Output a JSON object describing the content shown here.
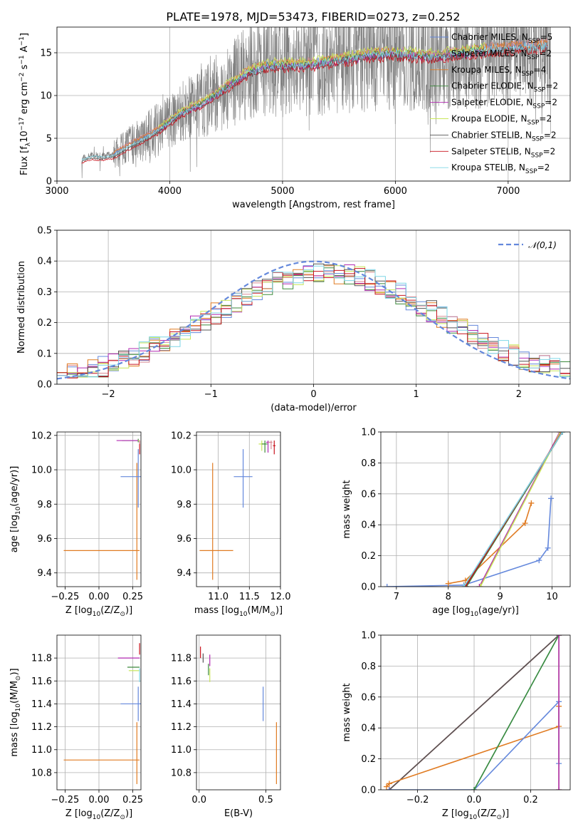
{
  "figure": {
    "title": "PLATE=1978, MJD=53473, FIBERID=0273, z=0.252"
  },
  "colors": {
    "Chabrier MILES": "#6488dc",
    "Salpeter MILES": "#d98a94",
    "Kroupa MILES": "#e07b22",
    "Chabrier ELODIE": "#3c8a3c",
    "Salpeter ELODIE": "#b22ab2",
    "Kroupa ELODIE": "#c8e65a",
    "Chabrier STELIB": "#555555",
    "Salpeter STELIB": "#c8141e",
    "Kroupa STELIB": "#7ed6e6",
    "data": "#808080"
  },
  "chart_data": [
    {
      "id": "spectrum",
      "type": "line",
      "title": "PLATE=1978, MJD=53473, FIBERID=0273, z=0.252",
      "xlabel": "wavelength [Angstrom, rest frame]",
      "ylabel": "Flux [f$_\\lambda$10$^{-17}$ erg cm$^{-2}$ s$^{-1}$ A$^{-1}$]",
      "xlim": [
        3000,
        7550
      ],
      "ylim": [
        0,
        18
      ],
      "xticks": [
        3000,
        4000,
        5000,
        6000,
        7000
      ],
      "yticks": [
        0,
        5,
        10,
        15
      ],
      "grid": true,
      "legend_position": "top-right",
      "continuum_points": [
        [
          3220,
          2.6
        ],
        [
          3300,
          3.0
        ],
        [
          3400,
          2.9
        ],
        [
          3500,
          3.1
        ],
        [
          3700,
          4.6
        ],
        [
          3850,
          5.6
        ],
        [
          3950,
          6.5
        ],
        [
          4100,
          8.0
        ],
        [
          4300,
          9.2
        ],
        [
          4500,
          11.0
        ],
        [
          4700,
          12.8
        ],
        [
          4900,
          13.6
        ],
        [
          5200,
          13.6
        ],
        [
          5500,
          14.2
        ],
        [
          5800,
          14.8
        ],
        [
          6000,
          15.0
        ],
        [
          6300,
          14.6
        ],
        [
          6600,
          15.0
        ],
        [
          6900,
          15.5
        ],
        [
          7200,
          15.7
        ],
        [
          7350,
          15.9
        ]
      ],
      "data_range": [
        3220,
        7380
      ],
      "series": [
        {
          "name": "Chabrier MILES",
          "n_ssp": "5",
          "range": [
            3500,
            7350
          ],
          "offset": 0.1
        },
        {
          "name": "Salpeter MILES",
          "n_ssp": "2",
          "range": [
            3500,
            7350
          ],
          "offset": 0.3
        },
        {
          "name": "Kroupa MILES",
          "n_ssp": "4",
          "range": [
            3500,
            7350
          ],
          "offset": 0.2
        },
        {
          "name": "Chabrier ELODIE",
          "n_ssp": "2",
          "range": [
            3900,
            6800
          ],
          "offset": 0.0
        },
        {
          "name": "Salpeter ELODIE",
          "n_ssp": "2",
          "range": [
            3900,
            6800
          ],
          "offset": -0.2
        },
        {
          "name": "Kroupa ELODIE",
          "n_ssp": "2",
          "range": [
            3900,
            6800
          ],
          "offset": 0.4
        },
        {
          "name": "Chabrier STELIB",
          "n_ssp": "2",
          "range": [
            3220,
            7350
          ],
          "offset": -0.3
        },
        {
          "name": "Salpeter STELIB",
          "n_ssp": "2",
          "range": [
            3220,
            7350
          ],
          "offset": -0.5
        },
        {
          "name": "Kroupa STELIB",
          "n_ssp": "2",
          "range": [
            3220,
            7350
          ],
          "offset": -0.1
        }
      ]
    },
    {
      "id": "residuals",
      "type": "histogram",
      "xlabel": "(data-model)/error",
      "ylabel": "Normed distribution",
      "xlim": [
        -2.5,
        2.5
      ],
      "ylim": [
        0,
        0.5
      ],
      "xticks": [
        -2,
        -1,
        0,
        1,
        2
      ],
      "yticks": [
        0.0,
        0.1,
        0.2,
        0.3,
        0.4,
        0.5
      ],
      "grid": true,
      "legend_position": "top-right",
      "reference_curve": {
        "name": "$\\mathcal{N}(0,1)$",
        "mean": 0,
        "sigma": 1
      },
      "bin_width": 0.1,
      "series_names": [
        "Chabrier MILES",
        "Salpeter MILES",
        "Kroupa MILES",
        "Chabrier ELODIE",
        "Salpeter ELODIE",
        "Kroupa ELODIE",
        "Chabrier STELIB",
        "Salpeter STELIB",
        "Kroupa STELIB"
      ]
    },
    {
      "id": "age_vs_Z",
      "type": "errorbar",
      "xlabel": "Z [log$_{10}$(Z/Z$_\\odot$)]",
      "ylabel": "age  [log$_{10}$(age/yr)]",
      "xlim": [
        -0.31,
        0.31
      ],
      "ylim": [
        9.32,
        10.22
      ],
      "xticks": [
        -0.25,
        0.0,
        0.25
      ],
      "xticklabels": [
        "−0.25",
        "0.00",
        "0.25"
      ],
      "yticks": [
        9.4,
        9.6,
        9.8,
        10.0,
        10.2
      ],
      "grid": true,
      "points": [
        {
          "series": "Kroupa MILES",
          "x": 0.28,
          "y": 9.53,
          "xerr": [
            0.54,
            0.02
          ],
          "yerr": [
            0.17,
            0.51
          ]
        },
        {
          "series": "Chabrier MILES",
          "x": 0.29,
          "y": 9.96,
          "xerr": [
            0.13,
            0.02
          ],
          "yerr": [
            0.18,
            0.16
          ]
        },
        {
          "series": "Chabrier ELODIE",
          "x": 0.29,
          "y": 10.17,
          "xerr": [
            0.12,
            0.01
          ],
          "yerr": [
            0.01,
            0.01
          ]
        },
        {
          "series": "Salpeter ELODIE",
          "x": 0.2,
          "y": 10.17,
          "xerr": [
            0.07,
            0.09
          ],
          "yerr": [
            0.0,
            0.0
          ]
        },
        {
          "series": "Kroupa ELODIE",
          "x": 0.3,
          "y": 10.17,
          "xerr": [
            0.01,
            0.0
          ],
          "yerr": [
            0.0,
            0.0
          ]
        },
        {
          "series": "Salpeter STELIB",
          "x": 0.3,
          "y": 10.12,
          "xerr": [
            0.0,
            0.0
          ],
          "yerr": [
            0.03,
            0.05
          ]
        },
        {
          "series": "Salpeter MILES",
          "x": 0.3,
          "y": 10.16,
          "xerr": [
            0.0,
            0.0
          ],
          "yerr": [
            0.01,
            0.01
          ]
        }
      ]
    },
    {
      "id": "age_vs_mass",
      "type": "errorbar",
      "xlabel": "mass [log$_{10}$(M/M$_\\odot$)]",
      "ylabel": "",
      "xlim": [
        10.65,
        12.0
      ],
      "ylim": [
        9.32,
        10.22
      ],
      "xticks": [
        11.0,
        11.5,
        12.0
      ],
      "xticklabels": [
        "11.0",
        "11.5",
        "12.0"
      ],
      "yticks": [
        9.4,
        9.6,
        9.8,
        10.0,
        10.2
      ],
      "grid": true,
      "points": [
        {
          "series": "Kroupa MILES",
          "x": 10.91,
          "y": 9.53,
          "xerr": [
            0.21,
            0.33
          ],
          "yerr": [
            0.17,
            0.51
          ]
        },
        {
          "series": "Chabrier MILES",
          "x": 11.4,
          "y": 9.96,
          "xerr": [
            0.15,
            0.15
          ],
          "yerr": [
            0.18,
            0.16
          ]
        },
        {
          "series": "Kroupa ELODIE",
          "x": 11.7,
          "y": 10.15,
          "xerr": [
            0.05,
            0.05
          ],
          "yerr": [
            0.04,
            0.02
          ]
        },
        {
          "series": "Chabrier ELODIE",
          "x": 11.75,
          "y": 10.15,
          "xerr": [
            0.05,
            0.04
          ],
          "yerr": [
            0.05,
            0.02
          ]
        },
        {
          "series": "Salpeter ELODIE",
          "x": 11.8,
          "y": 10.16,
          "xerr": [
            0.03,
            0.03
          ],
          "yerr": [
            0.06,
            0.01
          ]
        },
        {
          "series": "Salpeter STELIB",
          "x": 11.9,
          "y": 10.14,
          "xerr": [
            0.02,
            0.02
          ],
          "yerr": [
            0.05,
            0.03
          ]
        },
        {
          "series": "Salpeter MILES",
          "x": 11.85,
          "y": 10.16,
          "xerr": [
            0.05,
            0.02
          ],
          "yerr": [
            0.04,
            0.01
          ]
        }
      ]
    },
    {
      "id": "massweight_vs_age",
      "type": "line",
      "xlabel": "age  [log$_{10}$(age/yr)]",
      "ylabel": "mass weight",
      "xlim": [
        6.7,
        10.35
      ],
      "ylim": [
        0,
        1
      ],
      "xticks": [
        7,
        8,
        9,
        10
      ],
      "yticks": [
        0.0,
        0.2,
        0.4,
        0.6,
        0.8,
        1.0
      ],
      "grid": true,
      "series": [
        {
          "name": "Chabrier MILES",
          "x": [
            6.82,
            8.3,
            9.75,
            9.92,
            9.98
          ],
          "y": [
            0.0,
            0.01,
            0.17,
            0.25,
            0.57
          ]
        },
        {
          "name": "Kroupa MILES",
          "x": [
            8.0,
            8.33,
            9.48,
            9.6
          ],
          "y": [
            0.02,
            0.04,
            0.41,
            0.54
          ]
        },
        {
          "name": "Salpeter MILES",
          "x": [
            8.6,
            10.15
          ],
          "y": [
            0.0,
            1.0
          ]
        },
        {
          "name": "Chabrier ELODIE",
          "x": [
            8.35,
            10.2
          ],
          "y": [
            0.0,
            1.0
          ]
        },
        {
          "name": "Salpeter ELODIE",
          "x": [
            8.6,
            10.15
          ],
          "y": [
            0.0,
            1.0
          ]
        },
        {
          "name": "Kroupa ELODIE",
          "x": [
            8.62,
            10.16
          ],
          "y": [
            0.0,
            1.0
          ]
        },
        {
          "name": "Chabrier STELIB",
          "x": [
            8.32,
            10.2
          ],
          "y": [
            0.0,
            1.0
          ]
        },
        {
          "name": "Salpeter STELIB",
          "x": [
            8.33,
            10.19
          ],
          "y": [
            0.0,
            1.0
          ]
        },
        {
          "name": "Kroupa STELIB",
          "x": [
            8.3,
            10.2
          ],
          "y": [
            0.0,
            1.0
          ]
        }
      ]
    },
    {
      "id": "mass_vs_Z",
      "type": "errorbar",
      "xlabel": "Z [log$_{10}$(Z/Z$_\\odot$)]",
      "ylabel": "mass [log$_{10}$(M/M$_\\odot$)]",
      "xlim": [
        -0.31,
        0.31
      ],
      "ylim": [
        10.65,
        12.0
      ],
      "xticks": [
        -0.25,
        0.0,
        0.25
      ],
      "xticklabels": [
        "−0.25",
        "0.00",
        "0.25"
      ],
      "yticks": [
        10.8,
        11.0,
        11.2,
        11.4,
        11.6,
        11.8
      ],
      "grid": true,
      "points": [
        {
          "series": "Kroupa MILES",
          "x": 0.28,
          "y": 10.91,
          "xerr": [
            0.54,
            0.02
          ],
          "yerr": [
            0.21,
            0.33
          ]
        },
        {
          "series": "Chabrier MILES",
          "x": 0.29,
          "y": 11.4,
          "xerr": [
            0.13,
            0.02
          ],
          "yerr": [
            0.15,
            0.15
          ]
        },
        {
          "series": "Chabrier ELODIE",
          "x": 0.26,
          "y": 11.72,
          "xerr": [
            0.05,
            0.04
          ],
          "yerr": [
            0.0,
            0.0
          ]
        },
        {
          "series": "Kroupa ELODIE",
          "x": 0.26,
          "y": 11.69,
          "xerr": [
            0.04,
            0.04
          ],
          "yerr": [
            0.0,
            0.0
          ]
        },
        {
          "series": "Salpeter ELODIE",
          "x": 0.22,
          "y": 11.8,
          "xerr": [
            0.08,
            0.08
          ],
          "yerr": [
            0.0,
            0.0
          ]
        },
        {
          "series": "Salpeter STELIB",
          "x": 0.3,
          "y": 11.88,
          "xerr": [
            0.0,
            0.0
          ],
          "yerr": [
            0.05,
            0.05
          ]
        },
        {
          "series": "Kroupa STELIB",
          "x": 0.3,
          "y": 11.65,
          "xerr": [
            0.0,
            0.0
          ],
          "yerr": [
            0.06,
            0.06
          ]
        }
      ]
    },
    {
      "id": "mass_vs_ebv",
      "type": "errorbar",
      "xlabel": "E(B-V)",
      "ylabel": "",
      "xlim": [
        -0.02,
        0.61
      ],
      "ylim": [
        10.65,
        12.0
      ],
      "xticks": [
        0.0,
        0.5
      ],
      "xticklabels": [
        "0.0",
        "0.5"
      ],
      "yticks": [
        10.8,
        11.0,
        11.2,
        11.4,
        11.6,
        11.8
      ],
      "grid": true,
      "points": [
        {
          "series": "Kroupa MILES",
          "x": 0.58,
          "y": 10.91,
          "xerr": [
            0.0,
            0.0
          ],
          "yerr": [
            0.21,
            0.33
          ]
        },
        {
          "series": "Chabrier MILES",
          "x": 0.48,
          "y": 11.4,
          "xerr": [
            0.0,
            0.0
          ],
          "yerr": [
            0.15,
            0.15
          ]
        },
        {
          "series": "Salpeter STELIB",
          "x": 0.01,
          "y": 11.85,
          "xerr": [
            0.0,
            0.0
          ],
          "yerr": [
            0.05,
            0.05
          ]
        },
        {
          "series": "Chabrier STELIB",
          "x": 0.03,
          "y": 11.8,
          "xerr": [
            0.0,
            0.0
          ],
          "yerr": [
            0.04,
            0.04
          ]
        },
        {
          "series": "Salpeter ELODIE",
          "x": 0.08,
          "y": 11.78,
          "xerr": [
            0.0,
            0.0
          ],
          "yerr": [
            0.05,
            0.05
          ]
        },
        {
          "series": "Kroupa ELODIE",
          "x": 0.08,
          "y": 11.65,
          "xerr": [
            0.0,
            0.0
          ],
          "yerr": [
            0.06,
            0.06
          ]
        },
        {
          "series": "Chabrier ELODIE",
          "x": 0.07,
          "y": 11.7,
          "xerr": [
            0.0,
            0.0
          ],
          "yerr": [
            0.05,
            0.05
          ]
        }
      ]
    },
    {
      "id": "massweight_vs_Z",
      "type": "line",
      "xlabel": "Z [log$_{10}$(Z/Z$_\\odot$)]",
      "ylabel": "mass weight",
      "xlim": [
        -0.33,
        0.34
      ],
      "ylim": [
        0,
        1
      ],
      "xticks": [
        -0.2,
        0.0,
        0.2
      ],
      "xticklabels": [
        "−0.2",
        "0.0",
        "0.2"
      ],
      "yticks": [
        0.0,
        0.2,
        0.4,
        0.6,
        0.8,
        1.0
      ],
      "grid": true,
      "series": [
        {
          "name": "Salpeter STELIB",
          "x": [
            -0.3,
            0.3
          ],
          "y": [
            0.0,
            1.0
          ]
        },
        {
          "name": "Chabrier STELIB",
          "x": [
            -0.3,
            0.3
          ],
          "y": [
            0.0,
            1.0
          ]
        },
        {
          "name": "Kroupa MILES",
          "x": [
            -0.31,
            -0.3,
            0.3,
            0.3
          ],
          "y": [
            0.02,
            0.04,
            0.41,
            0.54
          ]
        },
        {
          "name": "Chabrier MILES",
          "x": [
            -0.3,
            0.0,
            0.3,
            0.3
          ],
          "y": [
            0.0,
            0.0,
            0.57,
            0.17
          ]
        },
        {
          "name": "Kroupa STELIB",
          "x": [
            0.0,
            0.3
          ],
          "y": [
            0.0,
            1.0
          ]
        },
        {
          "name": "Chabrier ELODIE",
          "x": [
            0.0,
            0.3
          ],
          "y": [
            0.0,
            1.0
          ]
        },
        {
          "name": "Kroupa ELODIE",
          "x": [
            0.3,
            0.3
          ],
          "y": [
            0.0,
            1.0
          ]
        },
        {
          "name": "Salpeter ELODIE",
          "x": [
            0.3,
            0.3
          ],
          "y": [
            0.0,
            1.0
          ]
        }
      ]
    }
  ]
}
